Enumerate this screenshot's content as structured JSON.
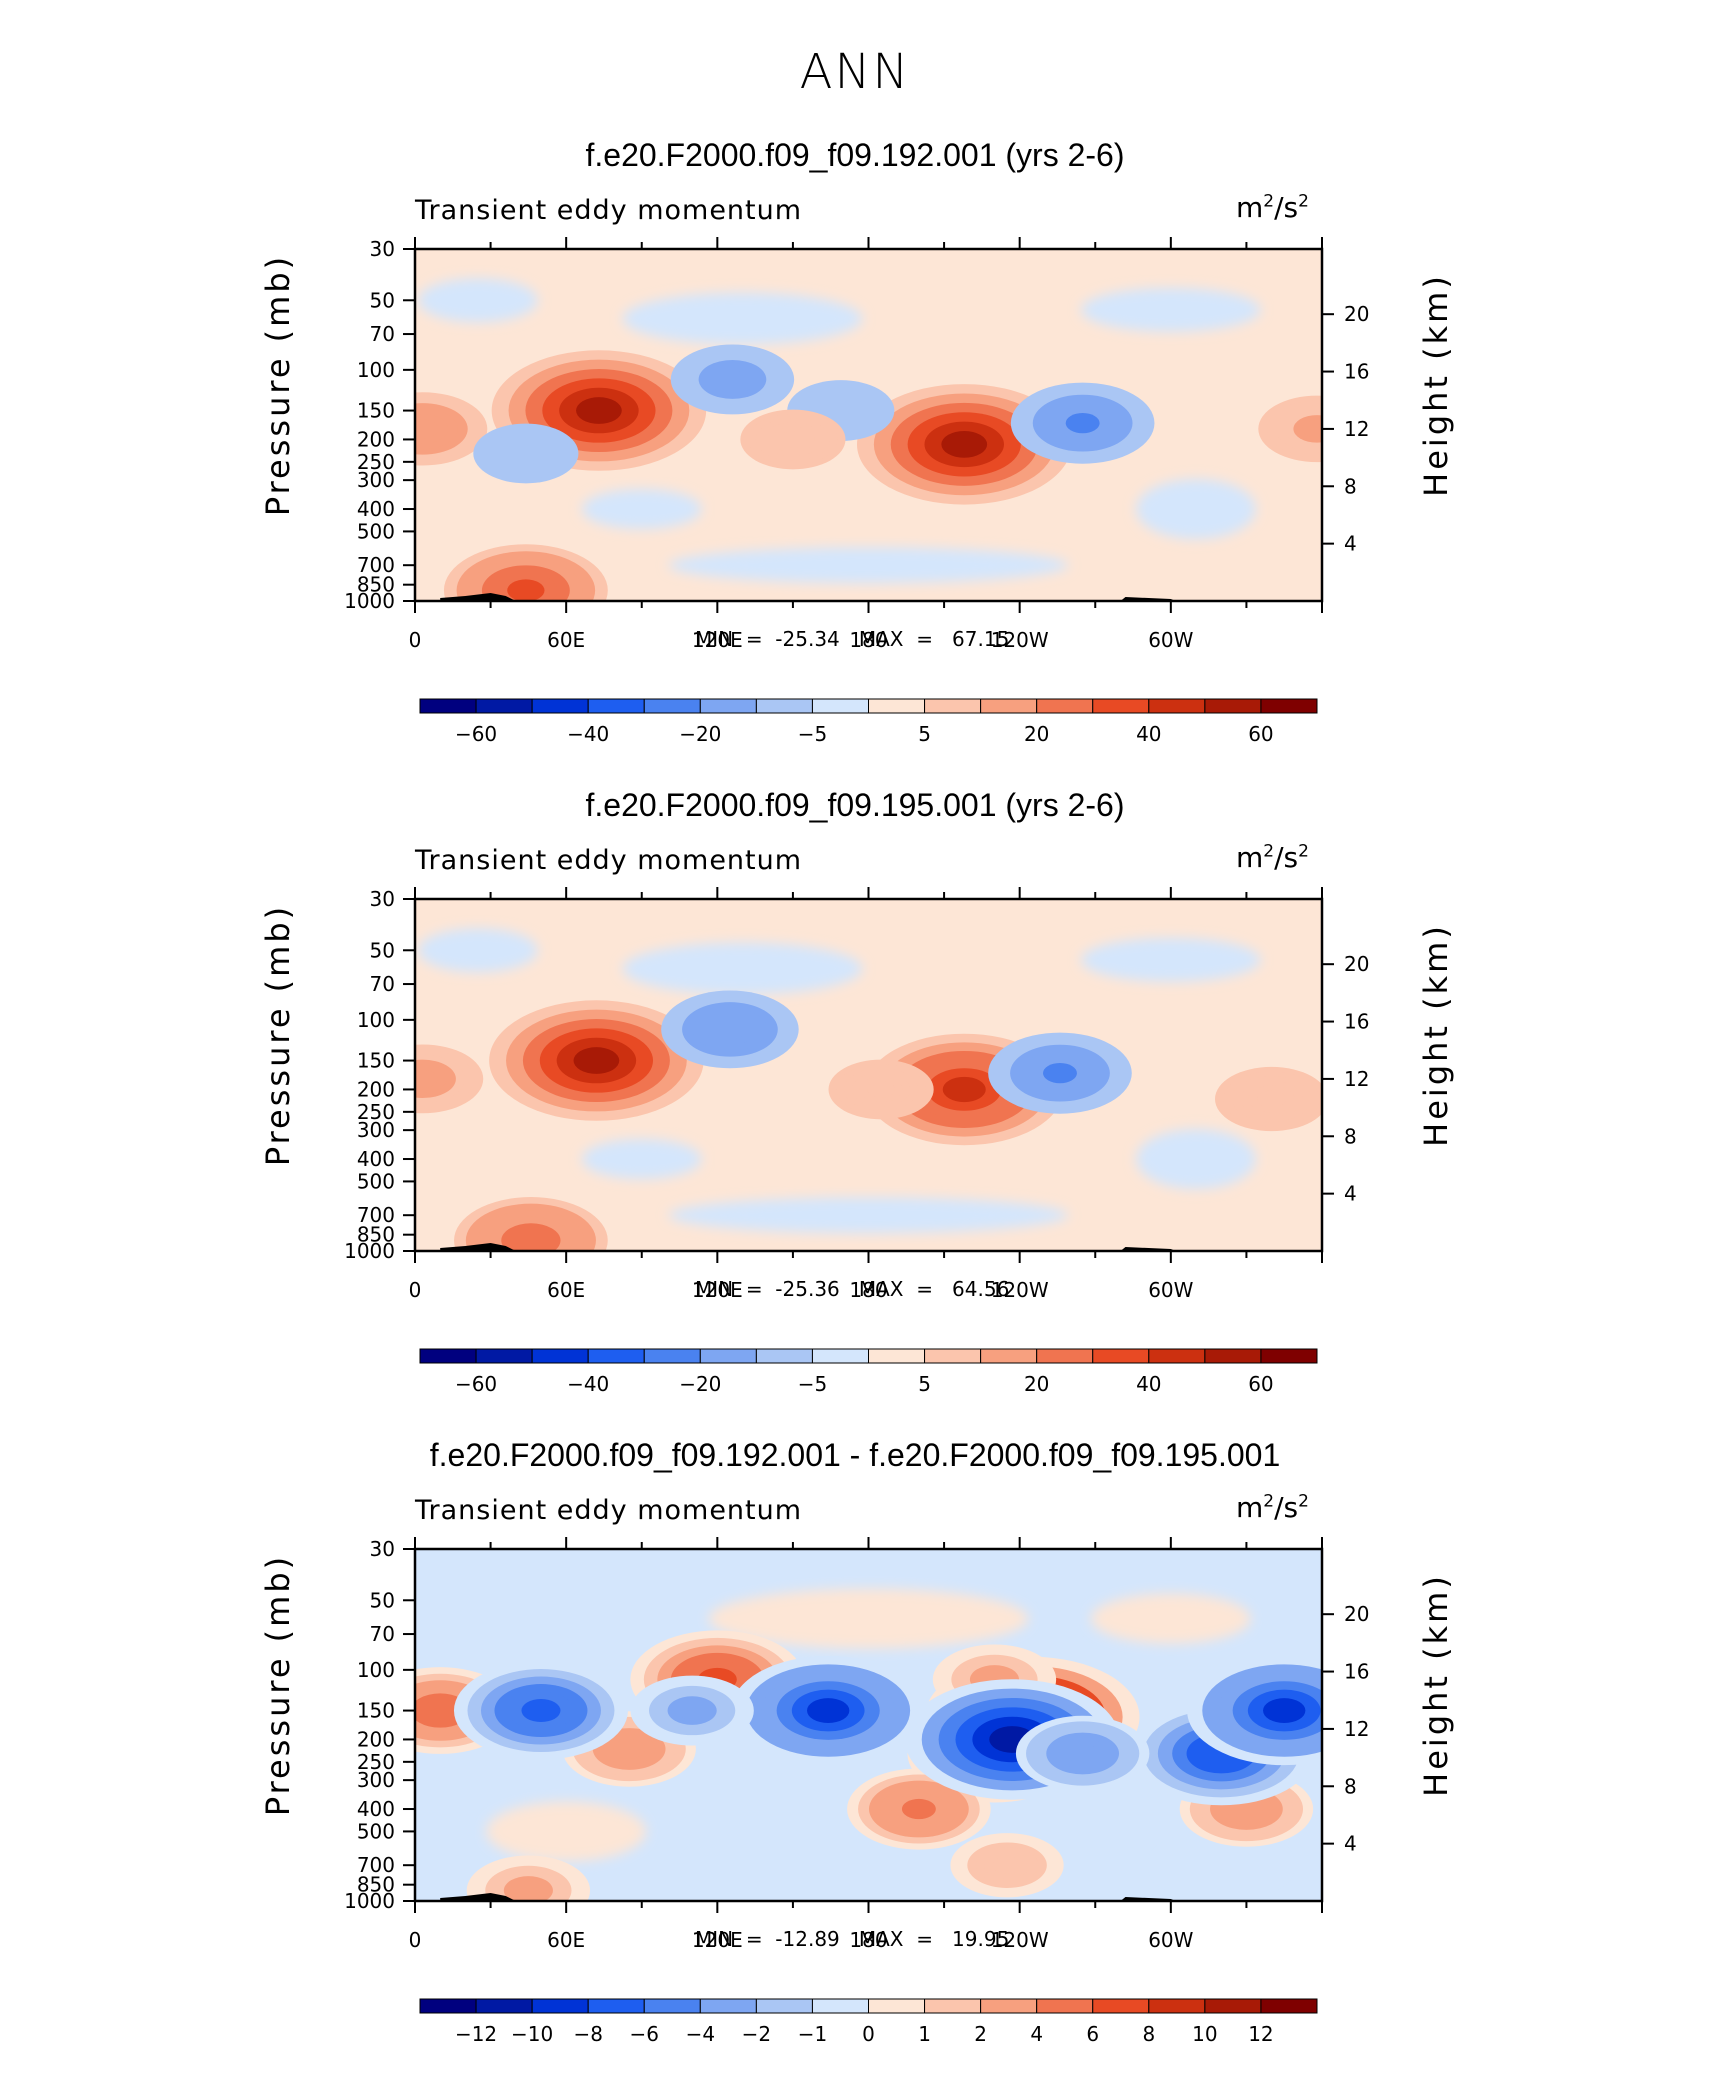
{
  "main_title": "ANN",
  "colors": {
    "palette": [
      "#00007f",
      "#0019a4",
      "#0033d6",
      "#1e5ef0",
      "#4a82f0",
      "#7ea6f2",
      "#aac6f4",
      "#d4e6fc",
      "#fde6d6",
      "#fbc5ad",
      "#f7a07f",
      "#f07450",
      "#e84a24",
      "#cc3010",
      "#a81a06",
      "#7f0000"
    ]
  },
  "chart_data": [
    {
      "type": "heatmap",
      "title": "f.e20.F2000.f09_f09.192.001 (yrs 2-6)",
      "field_label": "Transient eddy momentum",
      "units_base": "m",
      "units_exp1": "2",
      "units_mid": "/s",
      "units_exp2": "2",
      "ylabel": "Pressure (mb)",
      "ylabel_right": "Height (km)",
      "x_ticks": [
        "0",
        "60E",
        "120E",
        "180",
        "120W",
        "60W"
      ],
      "y_ticks": [
        "30",
        "50",
        "70",
        "100",
        "150",
        "200",
        "250",
        "300",
        "400",
        "500",
        "700",
        "850",
        "1000"
      ],
      "height_ticks": [
        "20",
        "16",
        "12",
        "8",
        "4"
      ],
      "ylim": [
        1000,
        30
      ],
      "minmax_text": "MIN  =  -25.34   MAX  =   67.15",
      "min": -25.34,
      "max": 67.15,
      "colorbar_labels": [
        "-60",
        "-40",
        "-20",
        "-5",
        "5",
        "20",
        "40",
        "60"
      ],
      "features": [
        {
          "lon": 73,
          "p": 150,
          "value": 67
        },
        {
          "lon": 218,
          "p": 210,
          "value": 63
        },
        {
          "lon": 3,
          "p": 180,
          "value": 18
        },
        {
          "lon": 44,
          "p": 900,
          "value": 35
        },
        {
          "lon": 126,
          "p": 110,
          "value": -15
        },
        {
          "lon": 265,
          "p": 170,
          "value": -25
        },
        {
          "lon": 169,
          "p": 150,
          "value": -7
        },
        {
          "lon": 44,
          "p": 230,
          "value": -6
        },
        {
          "lon": 150,
          "p": 200,
          "value": 6
        },
        {
          "lon": 358,
          "p": 180,
          "value": 12
        }
      ]
    },
    {
      "type": "heatmap",
      "title": "f.e20.F2000.f09_f09.195.001 (yrs 2-6)",
      "field_label": "Transient eddy momentum",
      "units_base": "m",
      "units_exp1": "2",
      "units_mid": "/s",
      "units_exp2": "2",
      "ylabel": "Pressure (mb)",
      "ylabel_right": "Height (km)",
      "x_ticks": [
        "0",
        "60E",
        "120E",
        "180",
        "120W",
        "60W"
      ],
      "y_ticks": [
        "30",
        "50",
        "70",
        "100",
        "150",
        "200",
        "250",
        "300",
        "400",
        "500",
        "700",
        "850",
        "1000"
      ],
      "height_ticks": [
        "20",
        "16",
        "12",
        "8",
        "4"
      ],
      "ylim": [
        1000,
        30
      ],
      "minmax_text": "MIN  =  -25.36   MAX  =   64.56",
      "min": -25.36,
      "max": 64.56,
      "colorbar_labels": [
        "-60",
        "-40",
        "-20",
        "-5",
        "5",
        "20",
        "40",
        "60"
      ],
      "features": [
        {
          "lon": 72,
          "p": 150,
          "value": 64
        },
        {
          "lon": 218,
          "p": 200,
          "value": 52
        },
        {
          "lon": 3,
          "p": 180,
          "value": 14
        },
        {
          "lon": 46,
          "p": 900,
          "value": 30
        },
        {
          "lon": 125,
          "p": 110,
          "value": -22
        },
        {
          "lon": 256,
          "p": 170,
          "value": -25
        },
        {
          "lon": 340,
          "p": 220,
          "value": 10
        },
        {
          "lon": 185,
          "p": 200,
          "value": 6
        }
      ]
    },
    {
      "type": "heatmap",
      "title": "f.e20.F2000.f09_f09.192.001 - f.e20.F2000.f09_f09.195.001",
      "field_label": "Transient eddy momentum",
      "units_base": "m",
      "units_exp1": "2",
      "units_mid": "/s",
      "units_exp2": "2",
      "ylabel": "Pressure (mb)",
      "ylabel_right": "Height (km)",
      "x_ticks": [
        "0",
        "60E",
        "120E",
        "180",
        "120W",
        "60W"
      ],
      "y_ticks": [
        "30",
        "50",
        "70",
        "100",
        "150",
        "200",
        "250",
        "300",
        "400",
        "500",
        "700",
        "850",
        "1000"
      ],
      "height_ticks": [
        "20",
        "16",
        "12",
        "8",
        "4"
      ],
      "ylim": [
        1000,
        30
      ],
      "minmax_text": "MIN  =  -12.89   MAX  =   19.95",
      "min": -12.89,
      "max": 19.95,
      "colorbar_labels": [
        "-12",
        "-10",
        "-8",
        "-6",
        "-4",
        "-2",
        "-1",
        "0",
        "1",
        "2",
        "4",
        "6",
        "8",
        "10",
        "12"
      ],
      "features": [
        {
          "lon": 245,
          "p": 160,
          "value": 19.95
        },
        {
          "lon": 230,
          "p": 230,
          "value": 8
        },
        {
          "lon": 200,
          "p": 400,
          "value": 5
        },
        {
          "lon": 120,
          "p": 110,
          "value": 8
        },
        {
          "lon": 85,
          "p": 220,
          "value": 4
        },
        {
          "lon": 10,
          "p": 150,
          "value": 6
        },
        {
          "lon": 330,
          "p": 400,
          "value": 4
        },
        {
          "lon": 230,
          "p": 110,
          "value": 3
        },
        {
          "lon": 45,
          "p": 900,
          "value": 3
        },
        {
          "lon": 235,
          "p": 700,
          "value": 2
        },
        {
          "lon": 237,
          "p": 200,
          "value": -12.89
        },
        {
          "lon": 164,
          "p": 150,
          "value": -10
        },
        {
          "lon": 50,
          "p": 150,
          "value": -8
        },
        {
          "lon": 320,
          "p": 230,
          "value": -9
        },
        {
          "lon": 345,
          "p": 150,
          "value": -10
        },
        {
          "lon": 110,
          "p": 150,
          "value": -3
        },
        {
          "lon": 265,
          "p": 230,
          "value": -4
        }
      ]
    }
  ]
}
